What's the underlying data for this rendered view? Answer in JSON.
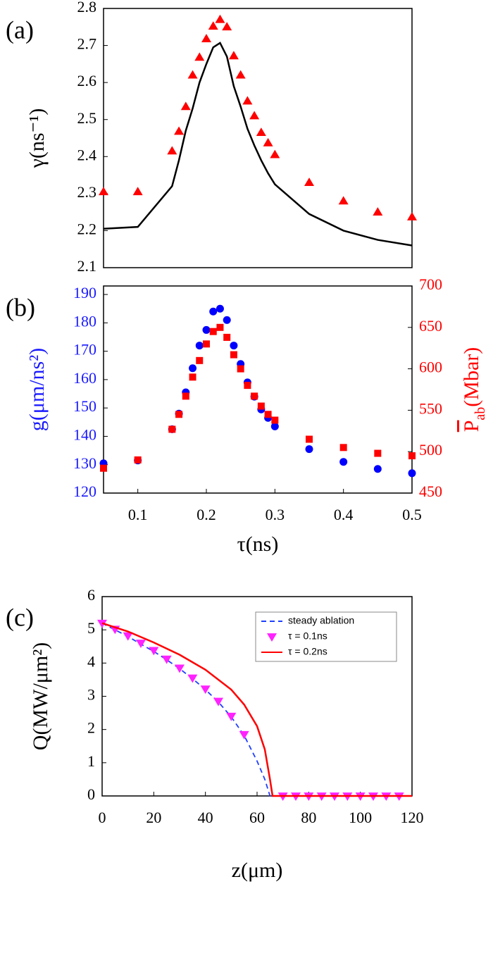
{
  "chart_data": [
    {
      "type": "line",
      "label": "(a)",
      "ylabel": "γ(ns⁻¹)",
      "xlim": [
        0.05,
        0.5
      ],
      "ylim": [
        2.1,
        2.8
      ],
      "yticks": [
        2.1,
        2.2,
        2.3,
        2.4,
        2.5,
        2.6,
        2.7,
        2.8
      ],
      "series": [
        {
          "style": "line",
          "color": "#000000",
          "x": [
            0.05,
            0.1,
            0.15,
            0.16,
            0.17,
            0.18,
            0.19,
            0.2,
            0.21,
            0.22,
            0.23,
            0.24,
            0.25,
            0.26,
            0.27,
            0.28,
            0.29,
            0.3,
            0.35,
            0.4,
            0.45,
            0.5
          ],
          "values": [
            2.205,
            2.21,
            2.32,
            2.39,
            2.47,
            2.53,
            2.6,
            2.65,
            2.695,
            2.707,
            2.67,
            2.59,
            2.535,
            2.475,
            2.43,
            2.39,
            2.355,
            2.325,
            2.245,
            2.2,
            2.175,
            2.16
          ]
        },
        {
          "style": "marker",
          "marker": "triangle-up",
          "color": "#ff0000",
          "x": [
            0.05,
            0.1,
            0.15,
            0.16,
            0.17,
            0.18,
            0.19,
            0.2,
            0.21,
            0.22,
            0.23,
            0.24,
            0.25,
            0.26,
            0.27,
            0.28,
            0.29,
            0.3,
            0.35,
            0.4,
            0.45,
            0.5
          ],
          "values": [
            2.305,
            2.305,
            2.415,
            2.468,
            2.535,
            2.62,
            2.668,
            2.718,
            2.752,
            2.77,
            2.75,
            2.672,
            2.62,
            2.55,
            2.51,
            2.465,
            2.437,
            2.405,
            2.33,
            2.28,
            2.25,
            2.237
          ]
        }
      ]
    },
    {
      "type": "scatter",
      "label": "(b)",
      "ylabel": "g(μm/ns²)",
      "y2label": [
        "P",
        "ab",
        "(Mbar)"
      ],
      "xlabel": "τ(ns)",
      "xlim": [
        0.05,
        0.5
      ],
      "xticks": [
        0.1,
        0.2,
        0.3,
        0.4,
        0.5
      ],
      "ylim": [
        120,
        193
      ],
      "yticks": [
        120,
        130,
        140,
        150,
        160,
        170,
        180,
        190
      ],
      "ycolor": "#1a1aff",
      "y2lim": [
        450,
        700
      ],
      "y2ticks": [
        450,
        500,
        550,
        600,
        650,
        700
      ],
      "y2color": "#ff0000",
      "series": [
        {
          "style": "marker",
          "marker": "circle",
          "color": "#0000ff",
          "x": [
            0.05,
            0.1,
            0.15,
            0.16,
            0.17,
            0.18,
            0.19,
            0.2,
            0.21,
            0.22,
            0.23,
            0.24,
            0.25,
            0.26,
            0.27,
            0.28,
            0.29,
            0.3,
            0.35,
            0.4,
            0.45,
            0.5
          ],
          "values": [
            130.5,
            131.5,
            142.5,
            148,
            155.5,
            164,
            172,
            177.5,
            184,
            185,
            181,
            172,
            165.5,
            159,
            154,
            149.5,
            146.5,
            143.5,
            135.5,
            131,
            128.5,
            127
          ]
        },
        {
          "style": "marker",
          "marker": "square",
          "color": "#ff0000",
          "axis": "y2",
          "x": [
            0.05,
            0.1,
            0.15,
            0.16,
            0.17,
            0.18,
            0.19,
            0.2,
            0.21,
            0.22,
            0.23,
            0.24,
            0.25,
            0.26,
            0.27,
            0.28,
            0.29,
            0.3,
            0.35,
            0.4,
            0.45,
            0.5
          ],
          "values": [
            480,
            490,
            527,
            545,
            567,
            590,
            610,
            630,
            645,
            650,
            638,
            617,
            600,
            580,
            567,
            555,
            545,
            538,
            515,
            505,
            498,
            495
          ]
        }
      ]
    },
    {
      "type": "line",
      "label": "(c)",
      "ylabel": "Q(MW/μm²)",
      "xlabel": "z(μm)",
      "xlim": [
        0,
        120
      ],
      "xticks": [
        0,
        20,
        40,
        60,
        80,
        100,
        120
      ],
      "ylim": [
        0,
        6
      ],
      "yticks": [
        0,
        1,
        2,
        3,
        4,
        5,
        6
      ],
      "legend": "top-right",
      "series": [
        {
          "name": "steady ablation",
          "style": "line",
          "dash": true,
          "color": "#1f3fff",
          "x": [
            0,
            5,
            10,
            15,
            20,
            25,
            30,
            35,
            40,
            45,
            50,
            55,
            60,
            63,
            65,
            120
          ],
          "values": [
            5.2,
            5.0,
            4.8,
            4.57,
            4.35,
            4.1,
            3.83,
            3.53,
            3.2,
            2.83,
            2.38,
            1.82,
            1.05,
            0.5,
            0,
            0
          ]
        },
        {
          "name": "τ = 0.1ns",
          "style": "marker",
          "marker": "triangle-down",
          "color": "#ff22ff",
          "x": [
            0,
            5,
            10,
            15,
            20,
            25,
            30,
            35,
            40,
            45,
            50,
            55,
            70,
            75,
            80,
            85,
            90,
            95,
            100,
            105,
            110,
            115
          ],
          "values": [
            5.2,
            5.02,
            4.82,
            4.6,
            4.38,
            4.12,
            3.85,
            3.55,
            3.22,
            2.85,
            2.4,
            1.85,
            0,
            0,
            0,
            0,
            0,
            0,
            0,
            0,
            0,
            0
          ]
        },
        {
          "name": "τ = 0.2ns",
          "style": "line",
          "color": "#ff0000",
          "x": [
            0,
            10,
            20,
            30,
            40,
            50,
            55,
            60,
            63,
            65,
            66,
            120
          ],
          "values": [
            5.2,
            4.95,
            4.62,
            4.25,
            3.8,
            3.2,
            2.75,
            2.1,
            1.4,
            0.5,
            0,
            0
          ]
        }
      ]
    }
  ]
}
